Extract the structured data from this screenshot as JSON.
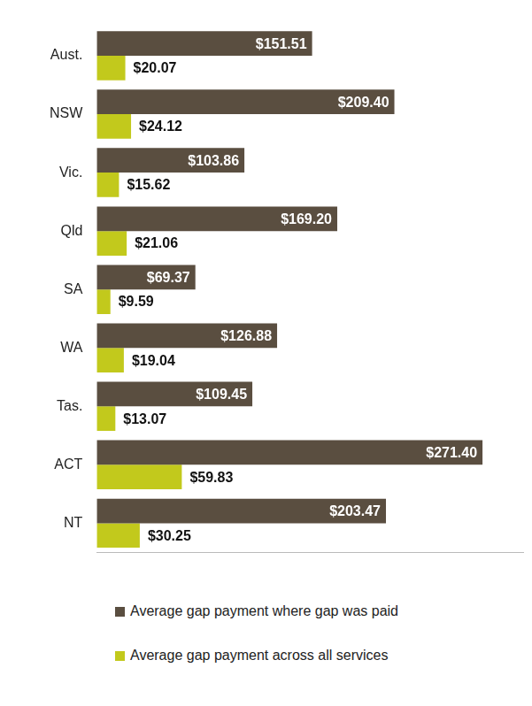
{
  "chart_data": {
    "type": "bar",
    "orientation": "horizontal",
    "categories": [
      "Aust.",
      "NSW",
      "Vic.",
      "Qld",
      "SA",
      "WA",
      "Tas.",
      "ACT",
      "NT"
    ],
    "series": [
      {
        "name": "Average gap payment where gap was paid",
        "color": "#5a4e40",
        "values": [
          151.51,
          209.4,
          103.86,
          169.2,
          69.37,
          126.88,
          109.45,
          271.4,
          203.47
        ],
        "value_labels": [
          "$151.51",
          "$209.40",
          "$103.86",
          "$169.20",
          "$69.37",
          "$126.88",
          "$109.45",
          "$271.40",
          "$203.47"
        ]
      },
      {
        "name": "Average gap payment across all services",
        "color": "#c2c91c",
        "values": [
          20.07,
          24.12,
          15.62,
          21.06,
          9.59,
          19.04,
          13.07,
          59.83,
          30.25
        ],
        "value_labels": [
          "$20.07",
          "$24.12",
          "$15.62",
          "$21.06",
          "$9.59",
          "$19.04",
          "$13.07",
          "$59.83",
          "$30.25"
        ]
      }
    ],
    "xlim": [
      0,
      300
    ],
    "data_labels": true,
    "tick_labels": "y",
    "grid": false,
    "legend": "bottom"
  }
}
